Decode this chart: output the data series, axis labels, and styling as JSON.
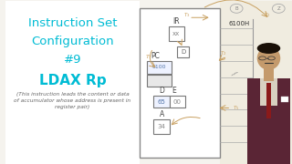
{
  "bg_color": "#f5f3ee",
  "title_lines": [
    "Instruction Set",
    "Configuration",
    "#9",
    "LDAX Rp"
  ],
  "title_color": "#00bcd4",
  "subtitle": "(This instruction leads the content or data\nof accumulator whose address is present in\nregister pair)",
  "subtitle_color": "#666666",
  "diagram_bg": "#ffffff",
  "arrow_color": "#c8a060",
  "box_border_color": "#777777",
  "mem_label": "6100H",
  "ir_val": "xx",
  "d_single_val": "D",
  "pc_val": "6100",
  "de_d_val": "65",
  "de_e_val": "00",
  "a_val": "34",
  "person_coat_color": "#5a2535",
  "person_skin_color": "#c49a6c",
  "person_shirt_color": "#e8e0d0",
  "person_tie_color": "#8b1a1a",
  "right_bg": "#f0ece0",
  "tau_labels": [
    "T7",
    "T3",
    "T2",
    "T5"
  ],
  "tau_color": "#c8a060"
}
